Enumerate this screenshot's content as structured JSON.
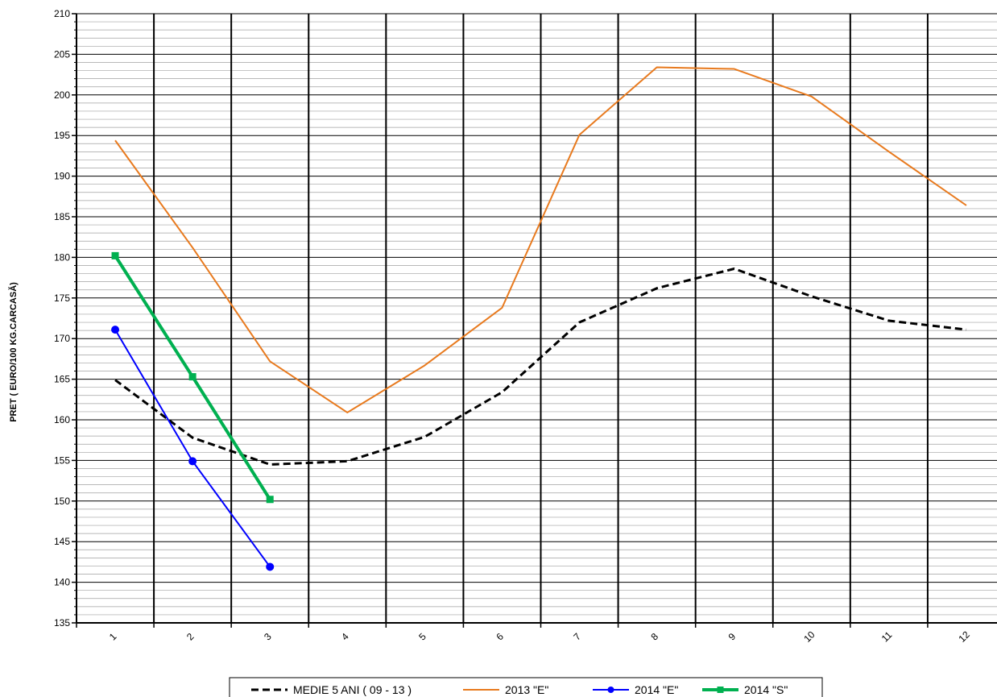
{
  "chart_data": {
    "type": "line",
    "title": "",
    "xlabel": "",
    "ylabel": "PRET ( EURO/100 KG.CARCASĂ)",
    "categories": [
      "1",
      "2",
      "3",
      "4",
      "5",
      "6",
      "7",
      "8",
      "9",
      "10",
      "11",
      "12"
    ],
    "ylim": [
      135,
      210
    ],
    "yticks": [
      "135",
      "140",
      "145",
      "150",
      "155",
      "160",
      "165",
      "170",
      "175",
      "180",
      "185",
      "190",
      "195",
      "200",
      "205",
      "210"
    ],
    "grid": "on",
    "legend_position": "bottom",
    "series": [
      {
        "name": "MEDIE 5 ANI ( 09 - 13 )",
        "color": "#000000",
        "style": "dashed",
        "marker": "none",
        "values": [
          164.9,
          157.8,
          154.5,
          154.9,
          157.9,
          163.4,
          172.0,
          176.2,
          178.6,
          175.2,
          172.2,
          171.1
        ]
      },
      {
        "name": "2013 \"E\"",
        "color": "#E87A1E",
        "style": "solid",
        "marker": "none",
        "values": [
          194.4,
          181.2,
          167.2,
          160.9,
          166.7,
          173.8,
          195.1,
          203.4,
          203.2,
          199.8,
          193.0,
          186.4
        ]
      },
      {
        "name": "2014 \"E\"",
        "color": "#0000FF",
        "style": "solid",
        "marker": "circle",
        "values": [
          171.1,
          154.9,
          141.9,
          null,
          null,
          null,
          null,
          null,
          null,
          null,
          null,
          null
        ]
      },
      {
        "name": "2014 \"S\"",
        "color": "#00B050",
        "style": "solid",
        "marker": "square",
        "values": [
          180.2,
          165.3,
          150.2,
          null,
          null,
          null,
          null,
          null,
          null,
          null,
          null,
          null
        ]
      }
    ]
  }
}
